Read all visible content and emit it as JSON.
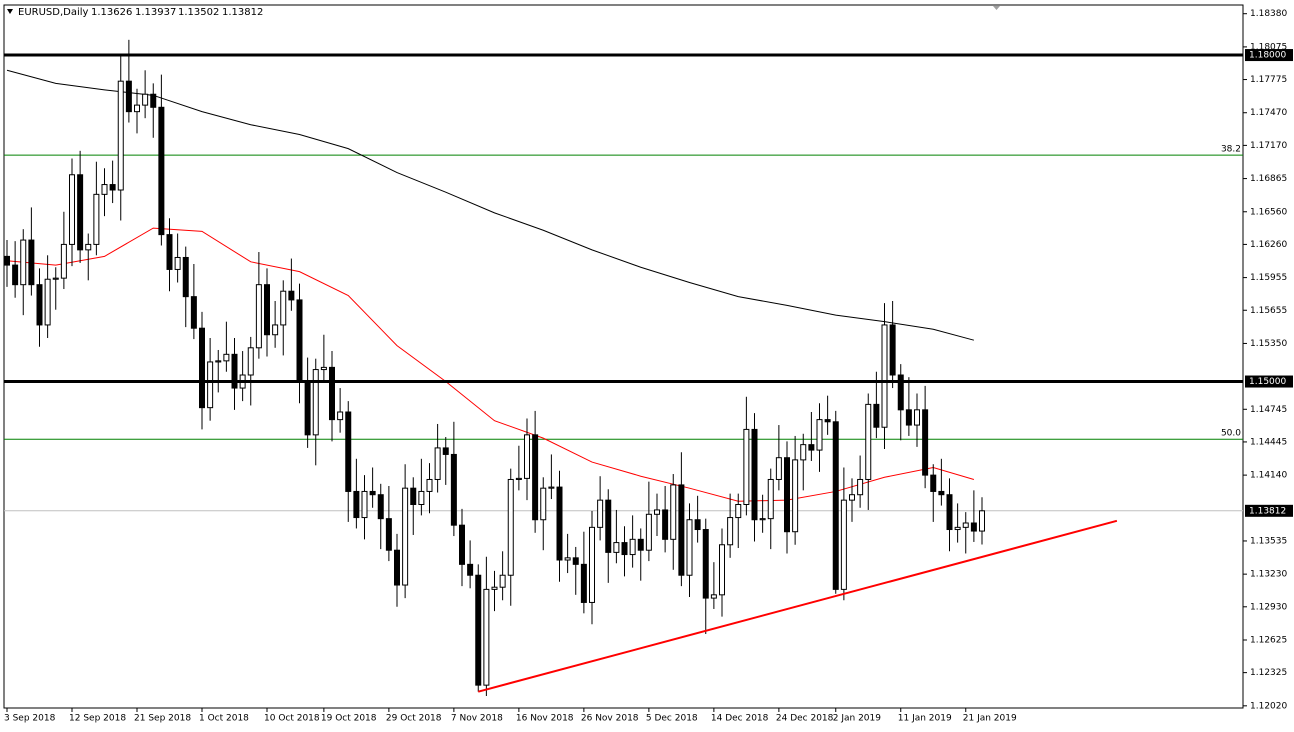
{
  "chart_data": {
    "type": "candlestick",
    "symbol": "EURUSD,Daily",
    "categories": [
      "3 Sep 2018",
      null,
      null,
      null,
      null,
      null,
      null,
      null,
      "12 Sep 2018",
      null,
      null,
      null,
      null,
      null,
      null,
      null,
      "21 Sep 2018",
      null,
      null,
      null,
      null,
      null,
      null,
      null,
      "1 Oct 2018",
      null,
      null,
      null,
      null,
      null,
      null,
      null,
      "10 Oct 2018",
      null,
      null,
      null,
      null,
      null,
      null,
      "19 Oct 2018",
      null,
      null,
      null,
      null,
      null,
      null,
      null,
      "29 Oct 2018",
      null,
      null,
      null,
      null,
      null,
      null,
      null,
      "7 Nov 2018",
      null,
      null,
      null,
      null,
      null,
      null,
      null,
      "16 Nov 2018",
      null,
      null,
      null,
      null,
      null,
      null,
      null,
      "26 Nov 2018",
      null,
      null,
      null,
      null,
      null,
      null,
      null,
      "5 Dec 2018",
      null,
      null,
      null,
      null,
      null,
      null,
      null,
      "14 Dec 2018",
      null,
      null,
      null,
      null,
      null,
      null,
      null,
      "24 Dec 2018",
      null,
      null,
      null,
      null,
      null,
      null,
      "2 Jan 2019",
      null,
      null,
      null,
      null,
      null,
      null,
      null,
      "11 Jan 2019",
      null,
      null,
      null,
      null,
      null,
      null,
      null,
      "21 Jan 2019",
      null,
      null
    ],
    "open": [
      1.1615,
      1.1607,
      1.1589,
      1.163,
      1.1589,
      1.1552,
      1.1594,
      1.1595,
      1.1626,
      1.169,
      1.1621,
      1.1626,
      1.1672,
      1.1681,
      1.1676,
      1.1776,
      1.1748,
      1.1754,
      1.1764,
      1.1752,
      1.1635,
      1.1603,
      1.1614,
      1.1578,
      1.1549,
      1.1476,
      1.1518,
      1.1519,
      1.1525,
      1.1494,
      1.1506,
      1.1531,
      1.1589,
      1.1543,
      1.1552,
      1.1583,
      1.1575,
      1.15,
      1.1451,
      1.1511,
      1.1513,
      1.1465,
      1.1472,
      1.1399,
      1.1375,
      1.1399,
      1.1396,
      1.1374,
      1.1345,
      1.1313,
      1.1402,
      1.1387,
      1.1399,
      1.141,
      1.1439,
      1.1433,
      1.1368,
      1.1332,
      1.1322,
      1.1221,
      1.1309,
      1.1311,
      1.1322,
      1.141,
      1.1411,
      1.1451,
      1.1373,
      1.1402,
      1.1403,
      1.1336,
      1.1338,
      1.1332,
      1.1297,
      1.1366,
      1.1391,
      1.1343,
      1.1352,
      1.1341,
      1.1355,
      1.1345,
      1.1378,
      1.1382,
      1.1355,
      1.1405,
      1.1322,
      1.1373,
      1.1364,
      1.1301,
      1.1304,
      1.135,
      1.1375,
      1.1387,
      1.1456,
      1.1373,
      1.1374,
      1.141,
      1.143,
      1.1362,
      1.1428,
      1.1442,
      1.1437,
      1.1465,
      1.1463,
      1.1309,
      1.1391,
      1.1396,
      1.141,
      1.1479,
      1.1458,
      1.1552,
      1.1506,
      1.1474,
      1.146,
      1.1474,
      1.1414,
      1.1399,
      1.1396,
      1.1364,
      1.1366,
      1.137,
      1.13626
    ],
    "high": [
      1.163,
      1.1629,
      1.164,
      1.166,
      1.1604,
      1.1616,
      1.1605,
      1.1656,
      1.1705,
      1.1712,
      1.1636,
      1.1702,
      1.1696,
      1.1703,
      1.18,
      1.1814,
      1.1769,
      1.1786,
      1.1774,
      1.1782,
      1.165,
      1.1636,
      1.1624,
      1.1608,
      1.1564,
      1.154,
      1.1529,
      1.1555,
      1.154,
      1.1528,
      1.1541,
      1.1619,
      1.1604,
      1.1574,
      1.1593,
      1.1613,
      1.159,
      1.1522,
      1.1521,
      1.1543,
      1.1528,
      1.1494,
      1.1482,
      1.1429,
      1.1414,
      1.1421,
      1.1406,
      1.1404,
      1.136,
      1.1424,
      1.1412,
      1.1429,
      1.1425,
      1.1461,
      1.1449,
      1.1463,
      1.1383,
      1.1354,
      1.1332,
      1.1339,
      1.1326,
      1.1344,
      1.142,
      1.1441,
      1.1466,
      1.1473,
      1.1412,
      1.1433,
      1.1418,
      1.136,
      1.1348,
      1.1362,
      1.1381,
      1.1413,
      1.1401,
      1.1382,
      1.1367,
      1.1377,
      1.1365,
      1.1408,
      1.1397,
      1.1404,
      1.1415,
      1.1435,
      1.1388,
      1.1395,
      1.1374,
      1.1334,
      1.1365,
      1.1397,
      1.1397,
      1.1486,
      1.1471,
      1.1396,
      1.142,
      1.146,
      1.1445,
      1.145,
      1.1452,
      1.1472,
      1.148,
      1.1487,
      1.1473,
      1.1421,
      1.1411,
      1.1432,
      1.1489,
      1.1509,
      1.1572,
      1.1574,
      1.1516,
      1.1504,
      1.1489,
      1.1496,
      1.1424,
      1.1429,
      1.1411,
      1.1388,
      1.138,
      1.14,
      1.13937
    ],
    "low": [
      1.1587,
      1.1577,
      1.1561,
      1.1579,
      1.1532,
      1.154,
      1.1566,
      1.1585,
      1.1606,
      1.1609,
      1.1593,
      1.1616,
      1.1652,
      1.1664,
      1.1648,
      1.1738,
      1.1728,
      1.1742,
      1.1724,
      1.1625,
      1.1583,
      1.1591,
      1.155,
      1.1539,
      1.1456,
      1.1464,
      1.149,
      1.1509,
      1.1474,
      1.1482,
      1.1478,
      1.1521,
      1.1523,
      1.1531,
      1.1524,
      1.1565,
      1.148,
      1.1439,
      1.1423,
      1.1501,
      1.1445,
      1.1453,
      1.1371,
      1.1365,
      1.1355,
      1.1384,
      1.1346,
      1.1335,
      1.1293,
      1.1301,
      1.1359,
      1.1377,
      1.1379,
      1.1398,
      1.1405,
      1.1358,
      1.1312,
      1.131,
      1.1215,
      1.1211,
      1.1289,
      1.1299,
      1.1294,
      1.14,
      1.1391,
      1.1361,
      1.1345,
      1.1392,
      1.1316,
      1.1324,
      1.1304,
      1.1287,
      1.1277,
      1.1354,
      1.1315,
      1.1333,
      1.1321,
      1.1329,
      1.1317,
      1.1335,
      1.1358,
      1.1343,
      1.1327,
      1.1312,
      1.1302,
      1.1352,
      1.1268,
      1.1291,
      1.1284,
      1.1338,
      1.1347,
      1.1377,
      1.1353,
      1.1361,
      1.1346,
      1.14,
      1.1342,
      1.135,
      1.14,
      1.1427,
      1.1417,
      1.1451,
      1.1305,
      1.1299,
      1.1371,
      1.1384,
      1.1382,
      1.1448,
      1.1438,
      1.1494,
      1.1446,
      1.145,
      1.144,
      1.1402,
      1.1371,
      1.1386,
      1.1344,
      1.1352,
      1.1342,
      1.13526,
      1.13502
    ],
    "close": [
      1.1607,
      1.1589,
      1.163,
      1.1589,
      1.1552,
      1.1594,
      1.1595,
      1.1626,
      1.169,
      1.1621,
      1.1626,
      1.1672,
      1.1681,
      1.1676,
      1.1776,
      1.1748,
      1.1754,
      1.1764,
      1.1752,
      1.1635,
      1.1603,
      1.1614,
      1.1578,
      1.1549,
      1.1476,
      1.1518,
      1.1519,
      1.1525,
      1.1494,
      1.1506,
      1.1531,
      1.1589,
      1.1543,
      1.1552,
      1.1583,
      1.1575,
      1.15,
      1.1451,
      1.1511,
      1.1513,
      1.1465,
      1.1472,
      1.1399,
      1.1375,
      1.1399,
      1.1396,
      1.1374,
      1.1345,
      1.1313,
      1.1402,
      1.1387,
      1.1399,
      1.141,
      1.1439,
      1.1433,
      1.1368,
      1.1332,
      1.1322,
      1.1221,
      1.1309,
      1.1311,
      1.1322,
      1.141,
      1.1411,
      1.1451,
      1.1373,
      1.1402,
      1.1403,
      1.1336,
      1.1338,
      1.1332,
      1.1297,
      1.1366,
      1.1391,
      1.1343,
      1.1352,
      1.1341,
      1.1355,
      1.1345,
      1.1378,
      1.1382,
      1.1355,
      1.1405,
      1.1322,
      1.1373,
      1.1364,
      1.1301,
      1.1304,
      1.135,
      1.1375,
      1.1387,
      1.1456,
      1.1373,
      1.1374,
      1.141,
      1.143,
      1.1362,
      1.1428,
      1.1442,
      1.1437,
      1.1465,
      1.1463,
      1.1309,
      1.1391,
      1.1396,
      1.141,
      1.1479,
      1.1458,
      1.1552,
      1.1506,
      1.1474,
      1.146,
      1.1474,
      1.1414,
      1.1399,
      1.1396,
      1.1364,
      1.1366,
      1.137,
      1.13626,
      1.13812
    ],
    "up_color": "#ffffff",
    "down_color": "#000000",
    "ylim": [
      1.12,
      1.1846
    ],
    "yticks": [
      {
        "value": 1.1838,
        "label": "1.18380"
      },
      1.18075,
      1.17775,
      {
        "value": 1.1747,
        "label": "1.17470"
      },
      {
        "value": 1.1717,
        "label": "1.17170"
      },
      1.16865,
      {
        "value": 1.1656,
        "label": "1.16560"
      },
      {
        "value": 1.1626,
        "label": "1.16260"
      },
      1.15955,
      1.15655,
      {
        "value": 1.1535,
        "label": "1.15350"
      },
      1.14745,
      1.14445,
      {
        "value": 1.1414,
        "label": "1.14140"
      },
      1.13535,
      {
        "value": 1.1323,
        "label": "1.13230"
      },
      {
        "value": 1.1293,
        "label": "1.12930"
      },
      1.12625,
      1.12325,
      {
        "value": 1.1202,
        "label": "1.12020"
      }
    ],
    "moving_averages": [
      {
        "color": "#000000",
        "x": [
          0,
          6,
          12,
          18,
          24,
          30,
          36,
          42,
          48,
          54,
          60,
          66,
          72,
          78,
          84,
          90,
          96,
          102,
          108,
          114,
          119
        ],
        "values": [
          1.1786,
          1.1774,
          1.1768,
          1.1763,
          1.1748,
          1.1736,
          1.1727,
          1.1714,
          1.1692,
          1.1674,
          1.1655,
          1.1639,
          1.1621,
          1.1605,
          1.1591,
          1.1578,
          1.157,
          1.1561,
          1.1555,
          1.1548,
          1.1538
        ]
      },
      {
        "color": "#ff0000",
        "x": [
          0,
          6,
          12,
          18,
          24,
          30,
          36,
          42,
          48,
          54,
          60,
          66,
          72,
          78,
          84,
          90,
          96,
          102,
          108,
          114,
          119
        ],
        "values": [
          1.1611,
          1.1607,
          1.1615,
          1.1641,
          1.1638,
          1.161,
          1.1601,
          1.1579,
          1.1533,
          1.15,
          1.1464,
          1.1448,
          1.1426,
          1.1413,
          1.1402,
          1.139,
          1.1391,
          1.1399,
          1.1412,
          1.1421,
          1.141
        ]
      }
    ],
    "levels": [
      {
        "value": 1.18,
        "label": "1.18000"
      },
      {
        "value": 1.15,
        "label": "1.15000"
      }
    ],
    "level_color": "#000000",
    "fib_levels": [
      {
        "value": 1.1708,
        "label": "38.2"
      },
      {
        "value": 1.1447,
        "label": "50.0"
      }
    ],
    "fib_color": "#008000",
    "trendline": {
      "color": "#ff0000",
      "x": [
        58,
        136.6
      ],
      "values": [
        1.1215,
        1.1372
      ]
    }
  }
}
